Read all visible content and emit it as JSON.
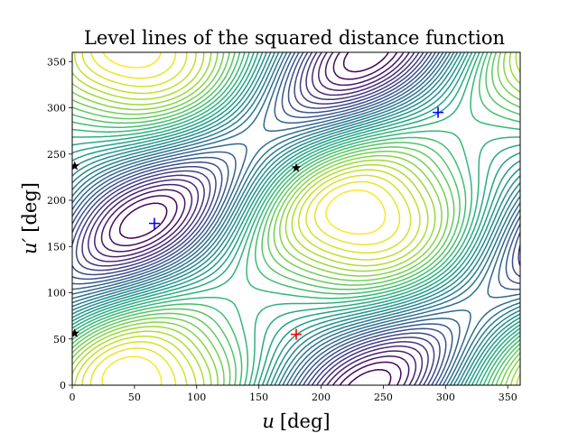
{
  "chart_data": {
    "type": "contour",
    "title": "Level lines of the squared distance function",
    "xlabel_var": "u",
    "xlabel_unit": "[deg]",
    "ylabel_var": "u′",
    "ylabel_unit": "[deg]",
    "xlim": [
      0,
      360
    ],
    "ylim": [
      0,
      360
    ],
    "xticks": [
      0,
      50,
      100,
      150,
      200,
      250,
      300,
      350
    ],
    "yticks": [
      0,
      50,
      100,
      150,
      200,
      250,
      300,
      350
    ],
    "colormap": "viridis",
    "markers": [
      {
        "kind": "maximum",
        "symbol": "plus",
        "color": "#ff0000",
        "x": 180,
        "y": 55
      },
      {
        "kind": "minimum",
        "symbol": "plus",
        "color": "#0000ff",
        "x": 66,
        "y": 175
      },
      {
        "kind": "minimum",
        "symbol": "plus",
        "color": "#0000ff",
        "x": 294,
        "y": 295
      },
      {
        "kind": "saddle",
        "symbol": "star",
        "color": "#000000",
        "x": 180,
        "y": 235
      },
      {
        "kind": "saddle",
        "symbol": "star",
        "color": "#000000",
        "x": 2,
        "y": 237
      },
      {
        "kind": "saddle",
        "symbol": "star",
        "color": "#000000",
        "x": 2,
        "y": 56
      }
    ]
  }
}
